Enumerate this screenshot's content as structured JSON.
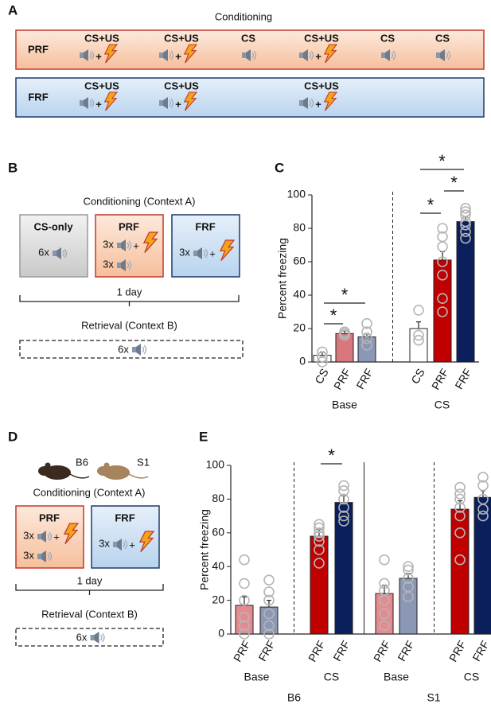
{
  "panel_a": {
    "label": "A",
    "title": "Conditioning",
    "plus": "+",
    "rows": [
      {
        "name": "PRF",
        "events": [
          {
            "label": "CS+US",
            "us": true
          },
          {
            "label": "CS+US",
            "us": true
          },
          {
            "label": "CS",
            "us": false
          },
          {
            "label": "CS+US",
            "us": true
          },
          {
            "label": "CS",
            "us": false
          },
          {
            "label": "CS",
            "us": false
          }
        ]
      },
      {
        "name": "FRF",
        "events": [
          {
            "label": "CS+US",
            "us": true
          },
          {
            "label": "CS+US",
            "us": true
          },
          {
            "label": "CS+US",
            "us": true
          }
        ]
      }
    ]
  },
  "panel_b": {
    "label": "B",
    "title": "Conditioning (Context A)",
    "plus": "+",
    "boxes": [
      {
        "name": "CS-only",
        "items": [
          {
            "count": "6x",
            "us": false
          }
        ]
      },
      {
        "name": "PRF",
        "items": [
          {
            "count": "3x",
            "us": true
          },
          {
            "count": "3x",
            "us": false
          }
        ]
      },
      {
        "name": "FRF",
        "items": [
          {
            "count": "3x",
            "us": true
          }
        ]
      }
    ],
    "duration": "1 day",
    "retrieval": "Retrieval (Context B)",
    "retrieval_count": "6x"
  },
  "panel_d": {
    "label": "D",
    "strains": [
      "B6",
      "S1"
    ],
    "title": "Conditioning (Context A)",
    "plus": "+",
    "boxes": [
      {
        "name": "PRF",
        "items": [
          {
            "count": "3x",
            "us": true
          },
          {
            "count": "3x",
            "us": false
          }
        ]
      },
      {
        "name": "FRF",
        "items": [
          {
            "count": "3x",
            "us": true
          }
        ]
      }
    ],
    "duration": "1 day",
    "retrieval": "Retrieval (Context B)",
    "retrieval_count": "6x"
  },
  "chart_data": [
    {
      "label": "C",
      "type": "bar",
      "ylabel": "Percent freezing",
      "categories": [
        "CS",
        "PRF",
        "FRF",
        "CS",
        "PRF",
        "FRF"
      ],
      "groups": [
        {
          "name": "Base",
          "size": 3
        },
        {
          "name": "CS",
          "size": 3
        }
      ],
      "values": [
        4,
        17,
        15,
        20,
        61,
        84
      ],
      "errors": [
        2,
        1.5,
        2,
        4,
        5,
        3
      ],
      "colors": [
        "#ffffff",
        "#d9777f",
        "#8a97b5",
        "#ffffff",
        "#c00000",
        "#0b1f5c"
      ],
      "points": [
        [
          0,
          3,
          6
        ],
        [
          16,
          17,
          18,
          17
        ],
        [
          10,
          14,
          18,
          23
        ],
        [
          13,
          16,
          31
        ],
        [
          30,
          38,
          52,
          60,
          69,
          75,
          80
        ],
        [
          74,
          78,
          82,
          84,
          88,
          90,
          92
        ]
      ],
      "ylim": [
        0,
        100
      ],
      "yticks": [
        0,
        20,
        40,
        60,
        80,
        100
      ],
      "comparisons": [
        {
          "label": "*",
          "between": [
            0,
            1
          ]
        },
        {
          "label": "*",
          "between": [
            0,
            2
          ]
        },
        {
          "label": "*",
          "between": [
            3,
            4
          ]
        },
        {
          "label": "*",
          "between": [
            4,
            5
          ]
        },
        {
          "label": "*",
          "between": [
            3,
            5
          ]
        }
      ]
    },
    {
      "label": "E",
      "type": "bar",
      "ylabel": "Percent freezing",
      "categories": [
        "PRF",
        "FRF",
        "PRF",
        "FRF",
        "PRF",
        "FRF",
        "PRF",
        "FRF"
      ],
      "groups": [
        {
          "name": "Base",
          "size": 2
        },
        {
          "name": "CS",
          "size": 2
        },
        {
          "name": "Base",
          "size": 2
        },
        {
          "name": "CS",
          "size": 2
        }
      ],
      "strains": [
        {
          "name": "B6",
          "size": 2
        },
        {
          "name": "S1",
          "size": 2
        }
      ],
      "values": [
        17,
        16,
        58,
        78,
        24,
        33,
        74,
        81
      ],
      "errors": [
        5,
        4,
        4,
        4,
        5,
        3,
        5,
        4
      ],
      "colors": [
        "#e58a8f",
        "#8a97b5",
        "#c00000",
        "#0b1f5c",
        "#e58a8f",
        "#8a97b5",
        "#c00000",
        "#0b1f5c"
      ],
      "points": [
        [
          0,
          5,
          10,
          20,
          30,
          44
        ],
        [
          0,
          5,
          12,
          20,
          25,
          32
        ],
        [
          42,
          50,
          55,
          58,
          60,
          63,
          65
        ],
        [
          67,
          70,
          75,
          80,
          85,
          88
        ],
        [
          5,
          12,
          20,
          26,
          30,
          44
        ],
        [
          22,
          28,
          33,
          38,
          40
        ],
        [
          44,
          60,
          70,
          75,
          80,
          83,
          87
        ],
        [
          70,
          74,
          80,
          88,
          93
        ]
      ],
      "ylim": [
        0,
        100
      ],
      "yticks": [
        0,
        20,
        40,
        60,
        80,
        100
      ],
      "comparisons": [
        {
          "label": "*",
          "between": [
            2,
            3
          ]
        }
      ]
    }
  ]
}
